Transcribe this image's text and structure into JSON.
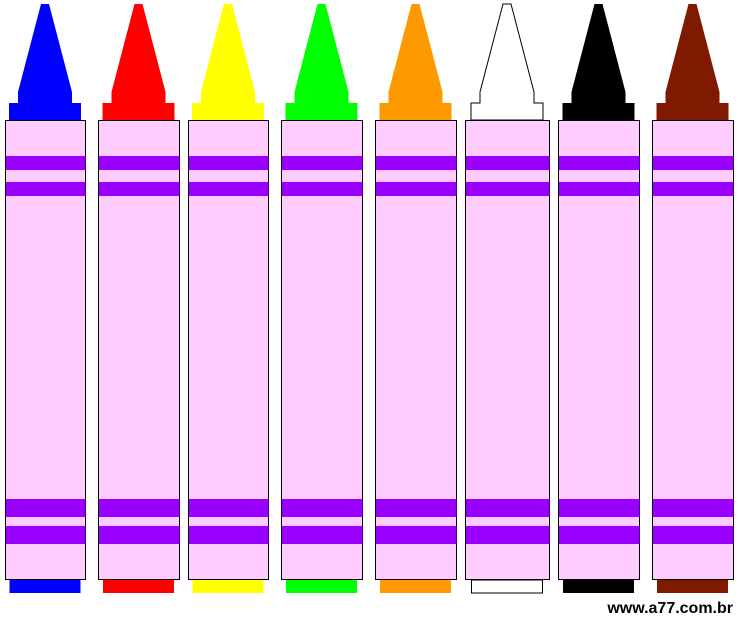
{
  "watermark": "www.a77.com.br"
}
